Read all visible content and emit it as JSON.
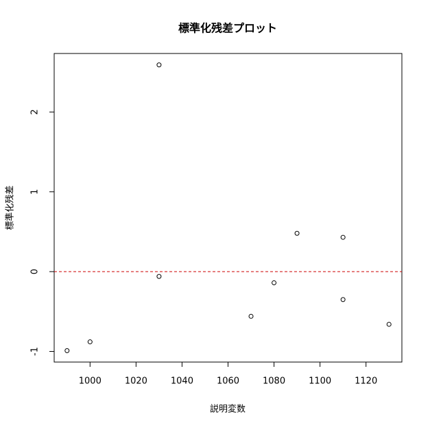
{
  "chart_data": {
    "type": "scatter",
    "title": "標準化残差プロット",
    "x_label": "説明変数",
    "y_label": "標準化残差",
    "x": [
      990,
      1000,
      1030,
      1030,
      1070,
      1080,
      1090,
      1110,
      1110,
      1130
    ],
    "values": [
      -0.99,
      -0.88,
      2.59,
      -0.06,
      -0.56,
      -0.14,
      0.48,
      0.43,
      -0.35,
      -0.66
    ],
    "color": "#000000",
    "xlim": [
      984.4,
      1135.6
    ],
    "xticks": [
      1000,
      1020,
      1040,
      1060,
      1080,
      1100,
      1120
    ],
    "ylim": [
      -1.133,
      2.733
    ],
    "yticks": [
      -1,
      0,
      1,
      2
    ],
    "reference_line": {
      "value": 0,
      "color": "#cc0000"
    }
  }
}
